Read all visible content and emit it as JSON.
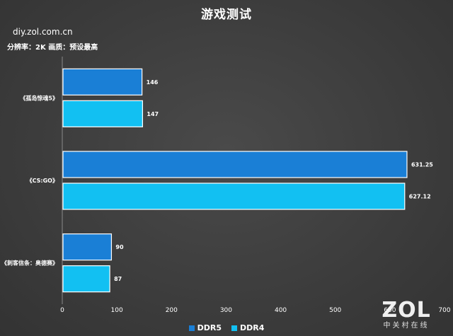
{
  "header": {
    "title": "游戏测试",
    "source": "diy.zol.com.cn",
    "subtitle": "分辨率：2K   画质：预设最高"
  },
  "watermark": {
    "logo": "ZOL",
    "tagline": "中关村在线"
  },
  "chart_data": {
    "type": "bar",
    "orientation": "horizontal",
    "title": "游戏测试",
    "categories": [
      "《孤岛惊魂5》",
      "《CS:GO》",
      "《刺客信条：奥德赛》"
    ],
    "series": [
      {
        "name": "DDR5",
        "values": [
          146,
          631.25,
          90
        ],
        "labels": [
          "146",
          "631.25",
          "90"
        ],
        "color": "#1a7fd6"
      },
      {
        "name": "DDR4",
        "values": [
          147,
          627.12,
          87
        ],
        "labels": [
          "147",
          "627.12",
          "87"
        ],
        "color": "#12c0f2"
      }
    ],
    "xlim": [
      0,
      700
    ],
    "xticks": [
      "0",
      "100",
      "200",
      "300",
      "400",
      "500",
      "600",
      "700"
    ],
    "xlabel": "",
    "ylabel": "",
    "grid": false,
    "legend": "bottom-center"
  }
}
